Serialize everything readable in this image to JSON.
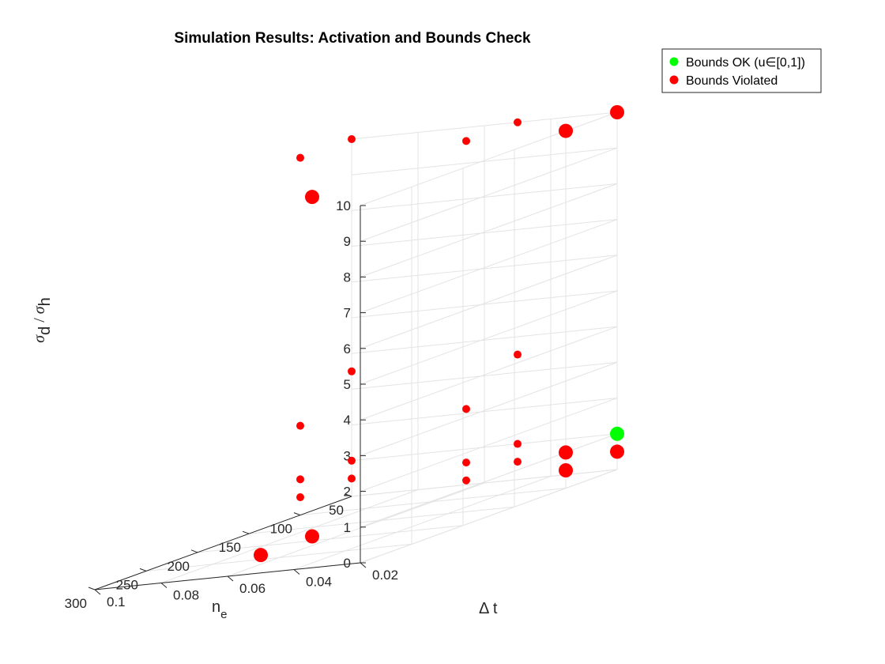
{
  "chart_data": {
    "type": "scatter",
    "title": "Simulation Results: Activation and Bounds Check",
    "xlabel": "Δ t",
    "ylabel": "n_e",
    "zlabel": "σ_d / σ_h",
    "xlim": [
      0.02,
      0.1
    ],
    "ylim": [
      50,
      300
    ],
    "zlim": [
      0,
      10
    ],
    "x_ticks": [
      "0.02",
      "0.04",
      "0.06",
      "0.08",
      "0.1"
    ],
    "y_ticks": [
      "50",
      "100",
      "150",
      "200",
      "250",
      "300"
    ],
    "z_ticks": [
      "0",
      "1",
      "2",
      "3",
      "4",
      "5",
      "6",
      "7",
      "8",
      "9",
      "10"
    ],
    "grid": true,
    "legend_position": "top-right",
    "series": [
      {
        "name": "Bounds OK (u∈[0,1])",
        "color": "#00ff00",
        "points": [
          {
            "x": 0.02,
            "y": 50,
            "z": 1.0,
            "size": "large"
          }
        ]
      },
      {
        "name": "Bounds Violated",
        "color": "#ff0000",
        "points": [
          {
            "x": 0.1,
            "y": 50,
            "z": 0.5,
            "size": "small"
          },
          {
            "x": 0.1,
            "y": 50,
            "z": 1.0,
            "size": "small"
          },
          {
            "x": 0.1,
            "y": 50,
            "z": 3.5,
            "size": "small"
          },
          {
            "x": 0.1,
            "y": 50,
            "z": 10.0,
            "size": "small"
          },
          {
            "x": 0.1,
            "y": 100,
            "z": 0.5,
            "size": "small"
          },
          {
            "x": 0.1,
            "y": 100,
            "z": 1.0,
            "size": "small"
          },
          {
            "x": 0.1,
            "y": 100,
            "z": 2.5,
            "size": "small"
          },
          {
            "x": 0.1,
            "y": 100,
            "z": 10.0,
            "size": "small"
          },
          {
            "x": 0.05,
            "y": 50,
            "z": 0.5,
            "size": "small"
          },
          {
            "x": 0.05,
            "y": 50,
            "z": 1.0,
            "size": "small"
          },
          {
            "x": 0.05,
            "y": 50,
            "z": 3.5,
            "size": "small"
          },
          {
            "x": 0.05,
            "y": 50,
            "z": 10.0,
            "size": "small"
          },
          {
            "x": 0.05,
            "y": 100,
            "z": 0.5,
            "size": "small"
          },
          {
            "x": 0.05,
            "y": 100,
            "z": 1.0,
            "size": "small"
          },
          {
            "x": 0.05,
            "y": 100,
            "z": 2.5,
            "size": "small"
          },
          {
            "x": 0.05,
            "y": 100,
            "z": 10.0,
            "size": "small"
          },
          {
            "x": 0.05,
            "y": 250,
            "z": 0.5,
            "size": "large"
          },
          {
            "x": 0.05,
            "y": 300,
            "z": 0.5,
            "size": "large"
          },
          {
            "x": 0.05,
            "y": 250,
            "z": 10.0,
            "size": "large"
          },
          {
            "x": 0.02,
            "y": 50,
            "z": 0.5,
            "size": "large"
          },
          {
            "x": 0.02,
            "y": 50,
            "z": 10.0,
            "size": "large"
          },
          {
            "x": 0.02,
            "y": 100,
            "z": 0.5,
            "size": "large"
          },
          {
            "x": 0.02,
            "y": 100,
            "z": 1.0,
            "size": "large"
          },
          {
            "x": 0.02,
            "y": 100,
            "z": 10.0,
            "size": "large"
          }
        ]
      }
    ]
  }
}
